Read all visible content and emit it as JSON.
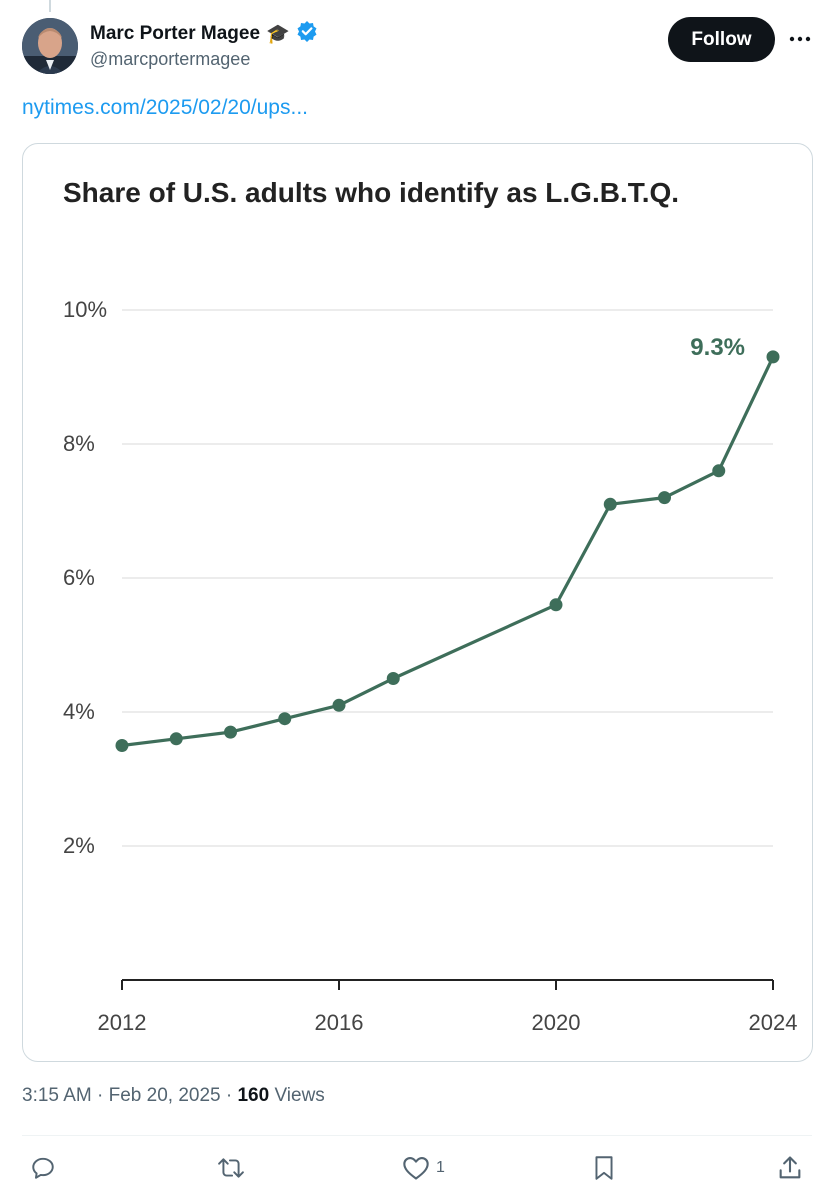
{
  "author": {
    "name": "Marc Porter Magee",
    "handle": "@marcportermagee",
    "badge_emoji": "🎓",
    "verified_icon": "verified-badge-icon"
  },
  "follow_label": "Follow",
  "link_text": "nytimes.com/2025/02/20/ups...",
  "meta": {
    "time": "3:15 AM",
    "date": "Feb 20, 2025",
    "views_count": "160",
    "views_label": "Views"
  },
  "actions": {
    "reply_icon": "reply-icon",
    "retweet_icon": "retweet-icon",
    "like_icon": "heart-icon",
    "like_count": "1",
    "bookmark_icon": "bookmark-icon",
    "share_icon": "share-icon"
  },
  "colors": {
    "accent": "#1d9bf0",
    "line": "#3e6e5a",
    "text": "#0f1419",
    "muted": "#536471"
  },
  "chart_data": {
    "type": "line",
    "title": "Share of U.S. adults who identify as L.G.B.T.Q.",
    "x": [
      2012,
      2013,
      2014,
      2015,
      2016,
      2017,
      2020,
      2021,
      2022,
      2023,
      2024
    ],
    "values": [
      3.5,
      3.6,
      3.7,
      3.9,
      4.1,
      4.5,
      5.6,
      7.1,
      7.2,
      7.6,
      9.3
    ],
    "ylim": [
      0,
      10
    ],
    "y_ticks": [
      "2%",
      "4%",
      "6%",
      "8%",
      "10%"
    ],
    "y_tick_values": [
      2,
      4,
      6,
      8,
      10
    ],
    "x_ticks": [
      "2012",
      "2016",
      "2020",
      "2024"
    ],
    "x_tick_values": [
      2012,
      2016,
      2020,
      2024
    ],
    "xlim": [
      2012,
      2024
    ],
    "annotation": "9.3%",
    "grid": true
  }
}
